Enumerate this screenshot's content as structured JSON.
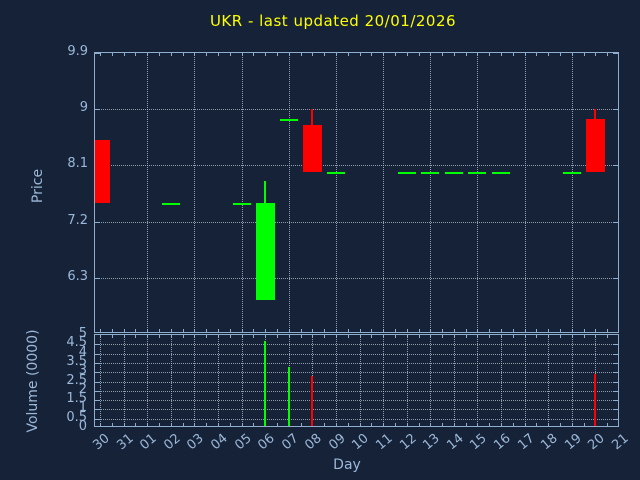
{
  "title": "UKR - last updated 20/01/2026",
  "colors": {
    "background": "#152238",
    "title": "#ffff00",
    "border": "#8fAECE",
    "grid": "#bcc8d2",
    "label": "#9cb8d8",
    "up": "#00ff00",
    "down": "#ff0000"
  },
  "price_axis": {
    "label": "Price",
    "tick_labels": [
      "9.9",
      "9",
      "8.1",
      "7.2",
      "6.3"
    ],
    "range": [
      5.4,
      9.9
    ]
  },
  "volume_axis": {
    "label": "Volume (0000)",
    "tick_labels": [
      "5",
      "4.5",
      "4",
      "3.5",
      "3",
      "2.5",
      "2",
      "1.5",
      "1",
      "0.5",
      "0"
    ],
    "range": [
      0,
      5
    ]
  },
  "x_axis": {
    "label": "Day",
    "tick_labels": [
      "30",
      "31",
      "01",
      "02",
      "03",
      "04",
      "05",
      "06",
      "07",
      "08",
      "09",
      "10",
      "11",
      "12",
      "13",
      "14",
      "15",
      "16",
      "17",
      "18",
      "19",
      "20",
      "21"
    ]
  },
  "chart_data": {
    "type": "candlestick",
    "title": "UKR - last updated 20/01/2026",
    "xlabel": "Day",
    "ylabel": "Price",
    "y2label": "Volume (0000)",
    "price_range": [
      5.4,
      9.9
    ],
    "volume_range": [
      0,
      5
    ],
    "grid": "dotted",
    "candles": [
      {
        "day": "30",
        "open": 8.5,
        "high": 8.5,
        "low": 7.5,
        "close": 7.5,
        "direction": "down",
        "volume": 0
      },
      {
        "day": "02",
        "open": 7.5,
        "high": 7.5,
        "low": 7.5,
        "close": 7.5,
        "direction": "up",
        "volume": 0
      },
      {
        "day": "05",
        "open": 7.5,
        "high": 7.5,
        "low": 7.5,
        "close": 7.5,
        "direction": "up",
        "volume": 0
      },
      {
        "day": "06",
        "open": 5.95,
        "high": 7.85,
        "low": 5.95,
        "close": 7.5,
        "direction": "up",
        "volume": 4.7
      },
      {
        "day": "07",
        "open": 8.85,
        "high": 8.85,
        "low": 8.85,
        "close": 8.85,
        "direction": "up",
        "volume": 3.3
      },
      {
        "day": "08",
        "open": 8.75,
        "high": 9.0,
        "low": 8.0,
        "close": 8.0,
        "direction": "down",
        "volume": 2.8
      },
      {
        "day": "09",
        "open": 8.0,
        "high": 8.0,
        "low": 8.0,
        "close": 8.0,
        "direction": "up",
        "volume": 0
      },
      {
        "day": "12",
        "open": 8.0,
        "high": 8.0,
        "low": 8.0,
        "close": 8.0,
        "direction": "up",
        "volume": 0
      },
      {
        "day": "13",
        "open": 8.0,
        "high": 8.0,
        "low": 8.0,
        "close": 8.0,
        "direction": "up",
        "volume": 0
      },
      {
        "day": "14",
        "open": 8.0,
        "high": 8.0,
        "low": 8.0,
        "close": 8.0,
        "direction": "up",
        "volume": 0
      },
      {
        "day": "15",
        "open": 8.0,
        "high": 8.0,
        "low": 8.0,
        "close": 8.0,
        "direction": "up",
        "volume": 0
      },
      {
        "day": "16",
        "open": 8.0,
        "high": 8.0,
        "low": 8.0,
        "close": 8.0,
        "direction": "up",
        "volume": 0
      },
      {
        "day": "19",
        "open": 8.0,
        "high": 8.0,
        "low": 8.0,
        "close": 8.0,
        "direction": "up",
        "volume": 0
      },
      {
        "day": "20",
        "open": 8.85,
        "high": 9.0,
        "low": 8.0,
        "close": 8.0,
        "direction": "down",
        "volume": 2.9
      }
    ]
  }
}
